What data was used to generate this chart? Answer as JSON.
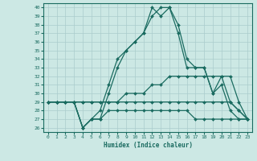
{
  "xlabel": "Humidex (Indice chaleur)",
  "xlim": [
    -0.5,
    23.5
  ],
  "ylim": [
    25.5,
    40.5
  ],
  "xticks": [
    0,
    1,
    2,
    3,
    4,
    5,
    6,
    7,
    8,
    9,
    10,
    11,
    12,
    13,
    14,
    15,
    16,
    17,
    18,
    19,
    20,
    21,
    22,
    23
  ],
  "yticks": [
    26,
    27,
    28,
    29,
    30,
    31,
    32,
    33,
    34,
    35,
    36,
    37,
    38,
    39,
    40
  ],
  "bg_color": "#cce8e4",
  "grid_color": "#aacccc",
  "line_color": "#1a6b60",
  "line_width": 0.9,
  "marker": "D",
  "marker_size": 2.0,
  "series": [
    {
      "x": [
        0,
        1,
        2,
        3,
        4,
        5,
        6,
        7,
        8,
        9,
        10,
        11,
        12,
        13,
        14,
        15,
        16,
        17,
        18,
        19,
        20,
        21,
        22,
        23
      ],
      "y": [
        29,
        29,
        29,
        29,
        26,
        27,
        28,
        31,
        34,
        35,
        36,
        37,
        40,
        39,
        40,
        37,
        33,
        33,
        33,
        30,
        31,
        28,
        27,
        27
      ]
    },
    {
      "x": [
        0,
        1,
        2,
        3,
        4,
        5,
        6,
        7,
        8,
        9,
        10,
        11,
        12,
        13,
        14,
        15,
        16,
        17,
        18,
        19,
        20,
        21,
        22,
        23
      ],
      "y": [
        29,
        29,
        29,
        29,
        26,
        27,
        27,
        30,
        33,
        35,
        36,
        37,
        39,
        40,
        40,
        38,
        34,
        33,
        33,
        30,
        32,
        29,
        28,
        27
      ]
    },
    {
      "x": [
        0,
        1,
        2,
        3,
        4,
        5,
        6,
        7,
        8,
        9,
        10,
        11,
        12,
        13,
        14,
        15,
        16,
        17,
        18,
        19,
        20,
        21,
        22,
        23
      ],
      "y": [
        29,
        29,
        29,
        29,
        29,
        29,
        29,
        29,
        29,
        30,
        30,
        30,
        31,
        31,
        32,
        32,
        32,
        32,
        32,
        32,
        32,
        32,
        29,
        27
      ]
    },
    {
      "x": [
        0,
        1,
        2,
        3,
        4,
        5,
        6,
        7,
        8,
        9,
        10,
        11,
        12,
        13,
        14,
        15,
        16,
        17,
        18,
        19,
        20,
        21,
        22,
        23
      ],
      "y": [
        29,
        29,
        29,
        29,
        29,
        29,
        29,
        29,
        29,
        29,
        29,
        29,
        29,
        29,
        29,
        29,
        29,
        29,
        29,
        29,
        29,
        29,
        28,
        27
      ]
    },
    {
      "x": [
        0,
        1,
        2,
        3,
        4,
        5,
        6,
        7,
        8,
        9,
        10,
        11,
        12,
        13,
        14,
        15,
        16,
        17,
        18,
        19,
        20,
        21,
        22,
        23
      ],
      "y": [
        29,
        29,
        29,
        29,
        26,
        27,
        27,
        28,
        28,
        28,
        28,
        28,
        28,
        28,
        28,
        28,
        28,
        27,
        27,
        27,
        27,
        27,
        27,
        27
      ]
    }
  ]
}
